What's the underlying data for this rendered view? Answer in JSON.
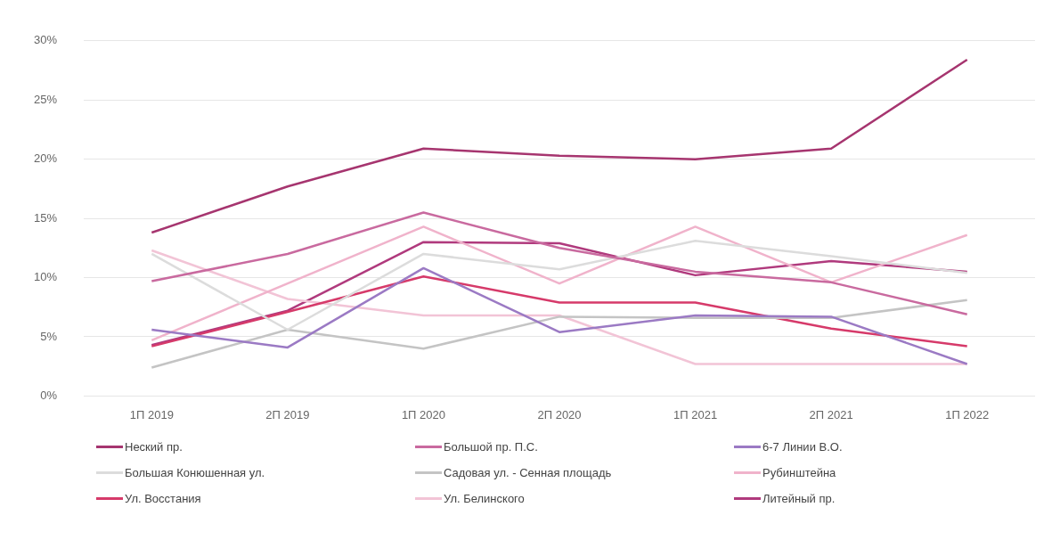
{
  "chart_data": {
    "type": "line",
    "categories": [
      "1П 2019",
      "2П 2019",
      "1П 2020",
      "2П 2020",
      "1П 2021",
      "2П 2021",
      "1П 2022"
    ],
    "ylim": [
      0,
      30
    ],
    "yticks": [
      {
        "value": 0,
        "label": "0%"
      },
      {
        "value": 5,
        "label": "5%"
      },
      {
        "value": 10,
        "label": "10%"
      },
      {
        "value": 15,
        "label": "15%"
      },
      {
        "value": 20,
        "label": "20%"
      },
      {
        "value": 25,
        "label": "25%"
      },
      {
        "value": 30,
        "label": "30%"
      }
    ],
    "grid": "y",
    "legend": "bottom",
    "marker": "none",
    "line_style": "solid",
    "series": [
      {
        "name": "Неский пр.",
        "color": "#a6356f",
        "values": [
          13.8,
          17.7,
          20.9,
          20.3,
          20.0,
          20.9,
          28.4
        ]
      },
      {
        "name": "Большой пр. П.С.",
        "color": "#c96a9f",
        "values": [
          9.7,
          12.0,
          15.5,
          12.5,
          10.5,
          9.6,
          6.9
        ]
      },
      {
        "name": "6-7 Линии В.О.",
        "color": "#9b7ac4",
        "values": [
          5.6,
          4.1,
          10.8,
          5.4,
          6.8,
          6.7,
          2.7
        ]
      },
      {
        "name": "Большая Конюшенная ул.",
        "color": "#dcdcdc",
        "values": [
          12.0,
          5.6,
          12.0,
          10.7,
          13.1,
          11.8,
          10.4
        ]
      },
      {
        "name": "Садовая ул. - Сенная площадь",
        "color": "#c4c4c4",
        "values": [
          2.4,
          5.6,
          4.0,
          6.7,
          6.6,
          6.6,
          8.1
        ]
      },
      {
        "name": "Рубинштейна",
        "color": "#f0b3cb",
        "values": [
          4.7,
          9.5,
          14.3,
          9.5,
          14.3,
          9.6,
          13.6
        ]
      },
      {
        "name": "Ул. Восстания",
        "color": "#d63a6a",
        "values": [
          4.2,
          7.1,
          10.1,
          7.9,
          7.9,
          5.7,
          4.2
        ]
      },
      {
        "name": "Ул. Белинского",
        "color": "#f2c4d6",
        "values": [
          12.3,
          8.2,
          6.8,
          6.8,
          2.7,
          2.7,
          2.7
        ]
      },
      {
        "name": "Литейный пр.",
        "color": "#b03a7d",
        "values": [
          4.3,
          7.2,
          13.0,
          12.9,
          10.2,
          11.4,
          10.5
        ]
      }
    ]
  }
}
